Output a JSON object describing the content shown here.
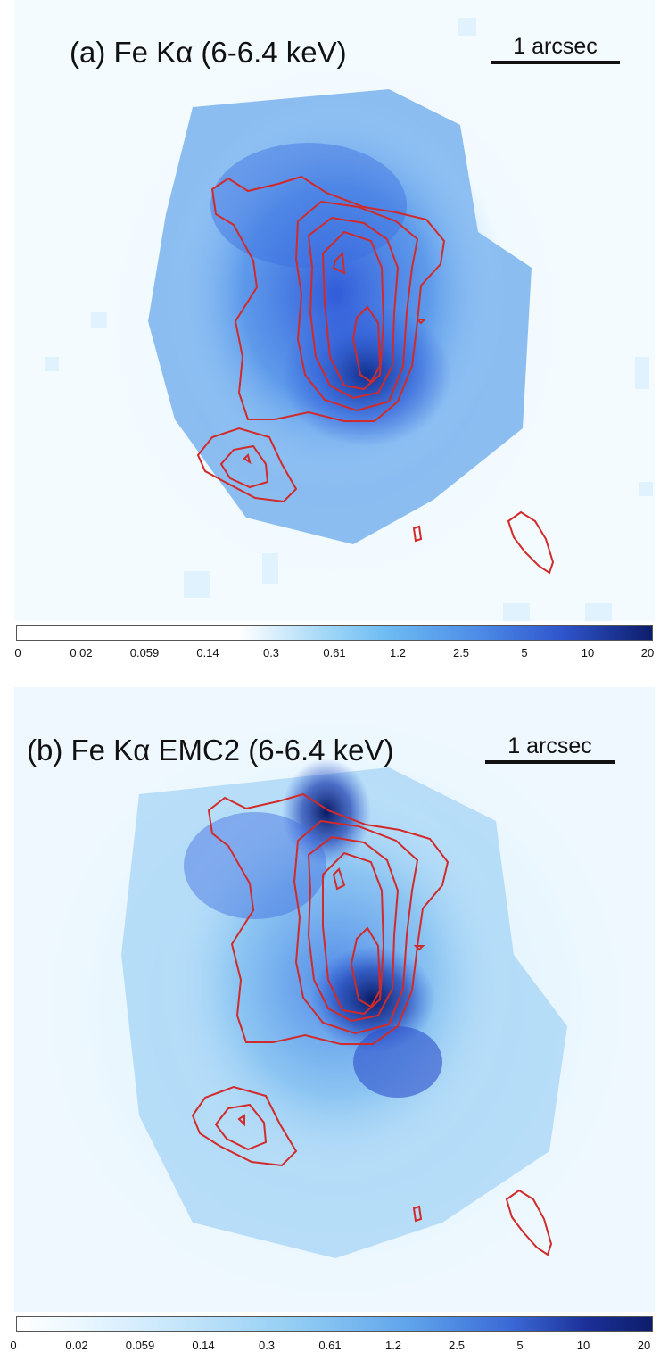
{
  "panels": [
    {
      "id": "a",
      "title": "(a) Fe Kα (6-6.4 keV)",
      "scalebar_label": "1 arcsec",
      "colorbar": {
        "ticks": [
          "0",
          "0.02",
          "0.059",
          "0.14",
          "0.3",
          "0.61",
          "1.2",
          "2.5",
          "5",
          "10",
          "20"
        ],
        "color_low": "#ffffff",
        "color_mid": "#7cc4f0",
        "color_high": "#0d1d6b"
      },
      "contour_color": "#d12a2a"
    },
    {
      "id": "b",
      "title": "(b) Fe Kα EMC2 (6-6.4 keV)",
      "scalebar_label": "1 arcsec",
      "colorbar": {
        "ticks": [
          "0",
          "0.02",
          "0.059",
          "0.14",
          "0.3",
          "0.61",
          "1.2",
          "2.5",
          "5",
          "10",
          "20"
        ],
        "color_low": "#ffffff",
        "color_mid": "#7cc4f0",
        "color_high": "#0d1d6b"
      },
      "contour_color": "#d12a2a"
    }
  ]
}
